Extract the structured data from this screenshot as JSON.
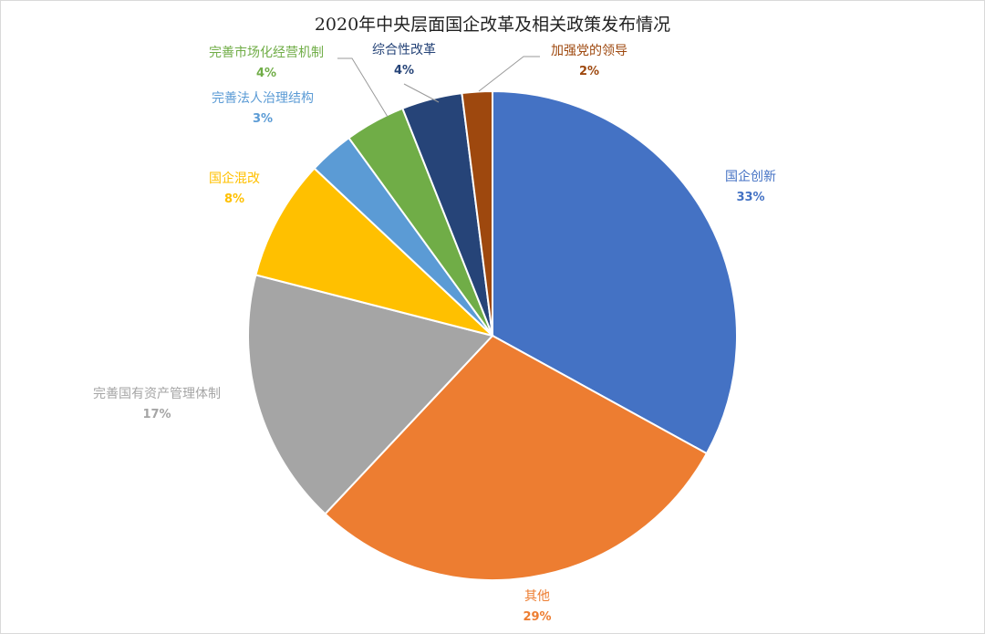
{
  "chart_data": {
    "type": "pie",
    "title": "2020年中央层面国企改革及相关政策发布情况",
    "slices": [
      {
        "label": "国企创新",
        "value": 33,
        "display": "33%",
        "color": "#4472C4"
      },
      {
        "label": "其他",
        "value": 29,
        "display": "29%",
        "color": "#ED7D31"
      },
      {
        "label": "完善国有资产管理体制",
        "value": 17,
        "display": "17%",
        "color": "#A5A5A5"
      },
      {
        "label": "国企混改",
        "value": 8,
        "display": "8%",
        "color": "#FFC000"
      },
      {
        "label": "完善法人治理结构",
        "value": 3,
        "display": "3%",
        "color": "#5B9BD5"
      },
      {
        "label": "完善市场化经营机制",
        "value": 4,
        "display": "4%",
        "color": "#70AD47"
      },
      {
        "label": "综合性改革",
        "value": 4,
        "display": "4%",
        "color": "#264478"
      },
      {
        "label": "加强党的领导",
        "value": 2,
        "display": "2%",
        "color": "#9E480E"
      }
    ],
    "legend": "none",
    "data_labels": "outside"
  }
}
